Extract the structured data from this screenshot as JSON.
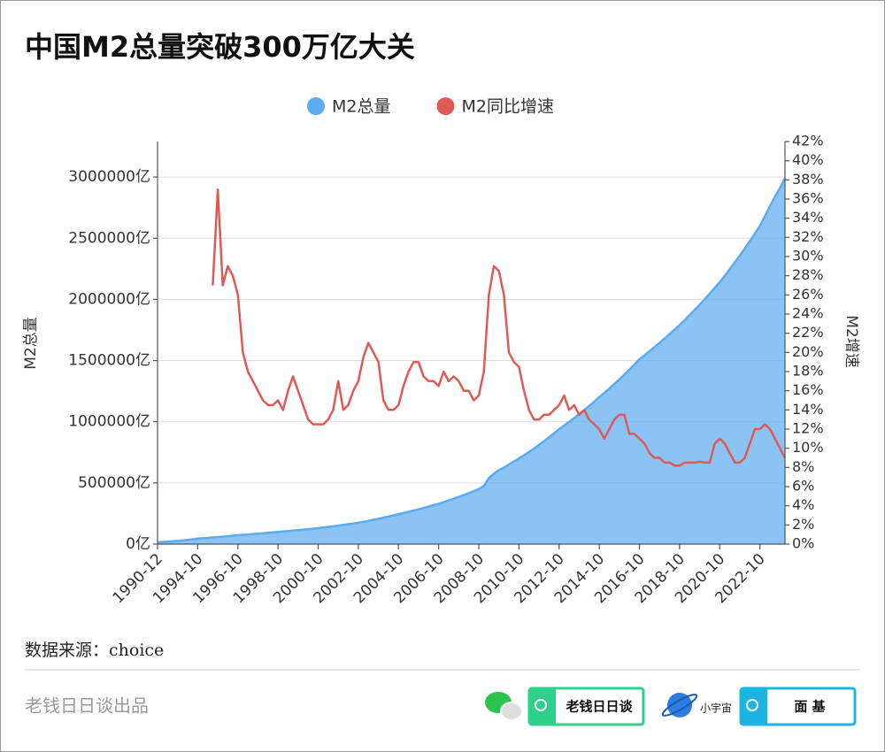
{
  "chart_data": {
    "type": "combo",
    "title": "中国M2总量突破300万亿大关",
    "y_label": "M2总量",
    "y2_label": "M2增速",
    "legend": "top",
    "grid": true,
    "categories": [
      "1990-12",
      null,
      null,
      null,
      null,
      null,
      null,
      null,
      "1994-10",
      null,
      null,
      null,
      null,
      null,
      null,
      null,
      "1996-10",
      null,
      null,
      null,
      null,
      null,
      null,
      null,
      "1998-10",
      null,
      null,
      null,
      null,
      null,
      null,
      null,
      "2000-10",
      null,
      null,
      null,
      null,
      null,
      null,
      null,
      "2002-10",
      null,
      null,
      null,
      null,
      null,
      null,
      null,
      "2004-10",
      null,
      null,
      null,
      null,
      null,
      null,
      null,
      "2006-10",
      null,
      null,
      null,
      null,
      null,
      null,
      null,
      "2008-10",
      null,
      null,
      null,
      null,
      null,
      null,
      null,
      "2010-10",
      null,
      null,
      null,
      null,
      null,
      null,
      null,
      "2012-10",
      null,
      null,
      null,
      null,
      null,
      null,
      null,
      "2014-10",
      null,
      null,
      null,
      null,
      null,
      null,
      null,
      "2016-10",
      null,
      null,
      null,
      null,
      null,
      null,
      null,
      "2018-10",
      null,
      null,
      null,
      null,
      null,
      null,
      null,
      "2020-10",
      null,
      null,
      null,
      null,
      null,
      null,
      null,
      "2022-10",
      null,
      null,
      null,
      null,
      null
    ],
    "ylim": [
      0,
      3290000
    ],
    "yticks": [
      {
        "value": 0,
        "label": "0亿"
      },
      {
        "value": 500000,
        "label": "500000亿"
      },
      {
        "value": 1000000,
        "label": "1000000亿"
      },
      {
        "value": 1500000,
        "label": "1500000亿"
      },
      {
        "value": 2000000,
        "label": "2000000亿"
      },
      {
        "value": 2500000,
        "label": "2500000亿"
      },
      {
        "value": 3000000,
        "label": "3000000亿"
      }
    ],
    "y2lim": [
      0,
      42
    ],
    "y2ticks": [
      {
        "value": 0,
        "label": "0%"
      },
      {
        "value": 2,
        "label": "2%"
      },
      {
        "value": 4,
        "label": "4%"
      },
      {
        "value": 6,
        "label": "6%"
      },
      {
        "value": 8,
        "label": "8%"
      },
      {
        "value": 10,
        "label": "10%"
      },
      {
        "value": 12,
        "label": "12%"
      },
      {
        "value": 14,
        "label": "14%"
      },
      {
        "value": 16,
        "label": "16%"
      },
      {
        "value": 18,
        "label": "18%"
      },
      {
        "value": 20,
        "label": "20%"
      },
      {
        "value": 22,
        "label": "22%"
      },
      {
        "value": 24,
        "label": "24%"
      },
      {
        "value": 26,
        "label": "26%"
      },
      {
        "value": 28,
        "label": "28%"
      },
      {
        "value": 30,
        "label": "30%"
      },
      {
        "value": 32,
        "label": "32%"
      },
      {
        "value": 34,
        "label": "34%"
      },
      {
        "value": 36,
        "label": "36%"
      },
      {
        "value": 38,
        "label": "38%"
      },
      {
        "value": 40,
        "label": "40%"
      },
      {
        "value": 42,
        "label": "42%"
      }
    ],
    "series": [
      {
        "name": "M2总量",
        "type": "area",
        "color": "#5aabf0",
        "values": [
          15000,
          17200,
          19700,
          22600,
          26000,
          29800,
          34100,
          39200,
          45000,
          47800,
          50800,
          53900,
          57300,
          60800,
          64600,
          68600,
          73000,
          75900,
          79000,
          82100,
          85400,
          88800,
          92400,
          96100,
          100000,
          103300,
          106800,
          110300,
          114000,
          117800,
          121700,
          125800,
          130000,
          134900,
          140000,
          145300,
          150800,
          156500,
          162400,
          168600,
          175000,
          182500,
          190400,
          198600,
          207100,
          216000,
          225300,
          235000,
          245000,
          254300,
          263900,
          273900,
          284300,
          295100,
          306300,
          317900,
          330000,
          343100,
          356700,
          370800,
          385500,
          400700,
          416600,
          433100,
          450000,
          475000,
          540000,
          575000,
          605000,
          625000,
          650000,
          675000,
          700000,
          726000,
          753000,
          781000,
          811000,
          841000,
          873000,
          905000,
          940000,
          969000,
          999000,
          1030000,
          1062000,
          1095000,
          1129000,
          1164000,
          1200000,
          1235000,
          1271000,
          1308000,
          1346000,
          1385000,
          1425000,
          1467000,
          1510000,
          1542000,
          1576000,
          1610000,
          1644000,
          1680000,
          1716000,
          1752000,
          1790000,
          1830000,
          1872000,
          1914000,
          1957000,
          2001000,
          2047000,
          2093000,
          2140000,
          2193000,
          2247000,
          2302000,
          2358000,
          2416000,
          2476000,
          2537000,
          2600000,
          2680000,
          2760000,
          2840000,
          2910000,
          2990000
        ]
      },
      {
        "name": "M2同比增速",
        "type": "line",
        "axis": "y2",
        "color": "#e05a55",
        "values": [
          null,
          null,
          null,
          null,
          null,
          null,
          null,
          null,
          null,
          null,
          null,
          27,
          37,
          27,
          29,
          28,
          26,
          20,
          18,
          17,
          16,
          15,
          14.5,
          14.5,
          15,
          14,
          16,
          17.5,
          16,
          14.5,
          13,
          12.5,
          12.5,
          12.5,
          13,
          14,
          17,
          14,
          14.5,
          16,
          17,
          19.5,
          21,
          20,
          19,
          15,
          14,
          14,
          14.5,
          16.5,
          18,
          19,
          19,
          17.5,
          17,
          17,
          16.5,
          18,
          17,
          17.5,
          17,
          16,
          16,
          15,
          15.5,
          18,
          26,
          29,
          28.5,
          26,
          20,
          19,
          18.5,
          16,
          14,
          13,
          13,
          13.5,
          13.5,
          14,
          14.5,
          15.5,
          14,
          14.5,
          13.5,
          14,
          13,
          12.5,
          12,
          11,
          12,
          13,
          13.5,
          13.5,
          11.5,
          11.5,
          11,
          10.5,
          9.5,
          9,
          9,
          8.5,
          8.5,
          8.2,
          8.2,
          8.5,
          8.5,
          8.5,
          8.6,
          8.5,
          8.5,
          10.5,
          11,
          10.5,
          9.5,
          8.5,
          8.5,
          9,
          10.5,
          12,
          12,
          12.5,
          12,
          11,
          10,
          9
        ]
      }
    ]
  },
  "source": "数据来源：choice",
  "footer": {
    "credit": "老钱日日谈出品",
    "badges": [
      "老钱日日谈",
      "小宇宙",
      "面 基"
    ]
  }
}
